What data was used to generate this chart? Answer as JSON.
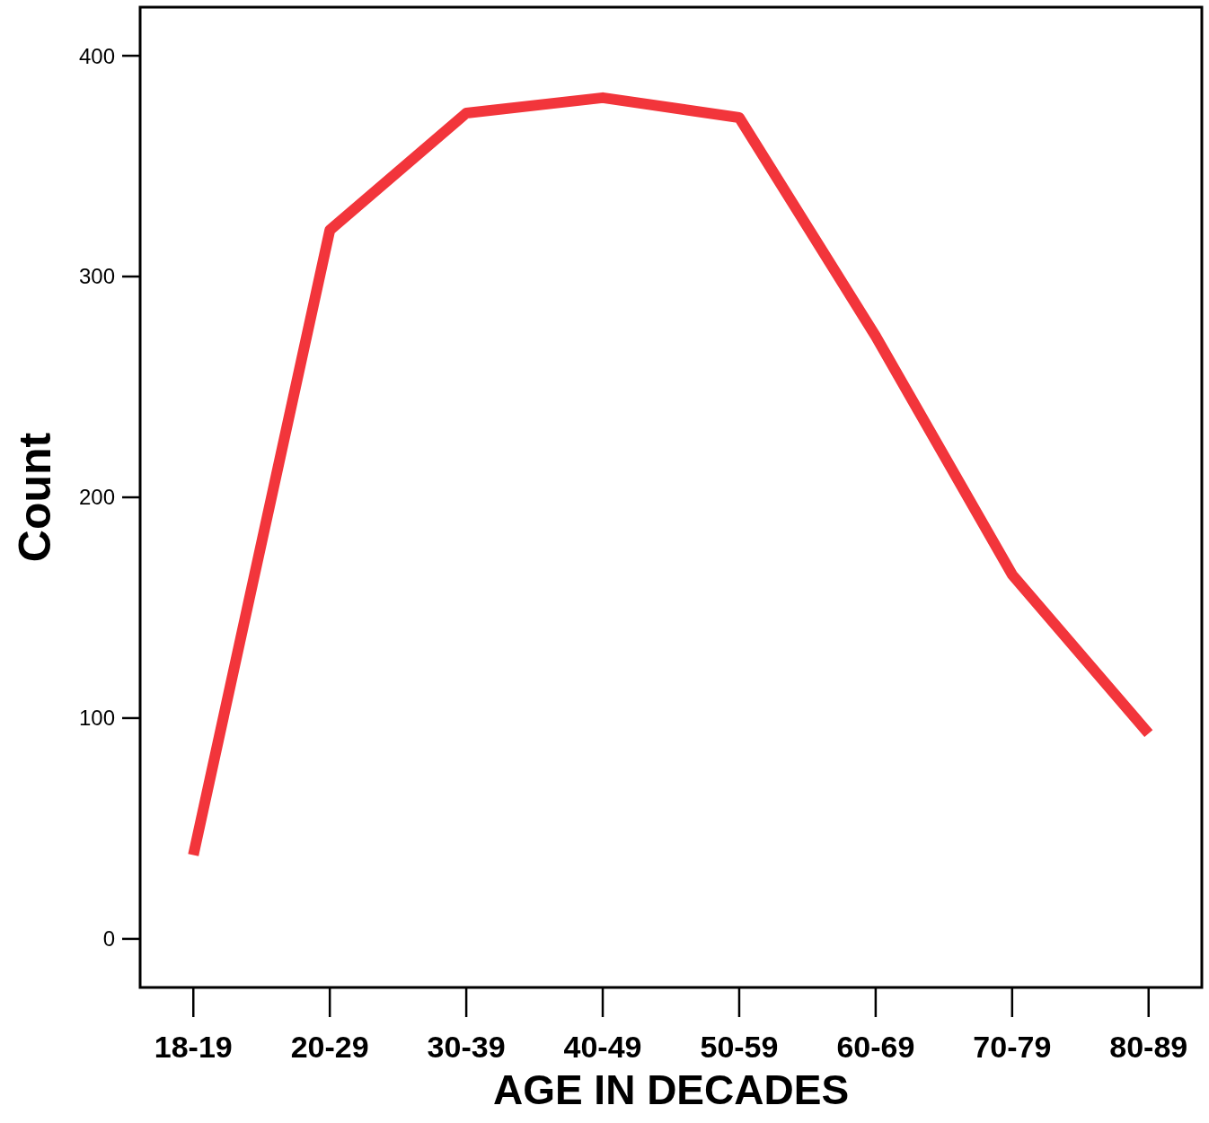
{
  "chart_data": {
    "type": "line",
    "xlabel": "AGE IN DECADES",
    "ylabel": "Count",
    "categories": [
      "18-19",
      "20-29",
      "30-39",
      "40-49",
      "50-59",
      "60-69",
      "70-79",
      "80-89"
    ],
    "series": [
      {
        "color": "#f2353b",
        "values": [
          38,
          321,
          374,
          381,
          372,
          273,
          165,
          93
        ]
      }
    ],
    "ylim": [
      -22,
      422
    ],
    "yticks": [
      0,
      100,
      200,
      300,
      400
    ],
    "grid": false,
    "marker": "none",
    "line_style": "solid"
  }
}
